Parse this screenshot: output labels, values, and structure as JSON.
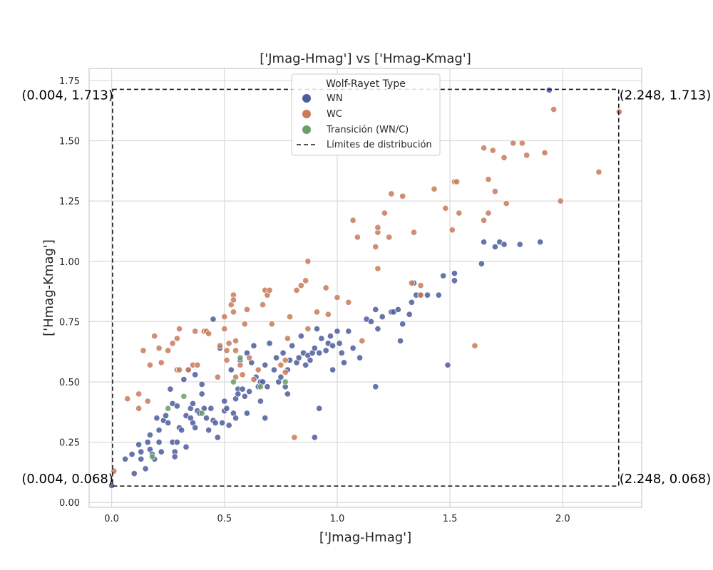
{
  "chart_data": {
    "type": "scatter",
    "title": "['Jmag-Hmag'] vs ['Hmag-Kmag']",
    "xlabel": "['Jmag-Hmag']",
    "ylabel": "['Hmag-Kmag']",
    "xlim": [
      -0.1,
      2.35
    ],
    "ylim": [
      -0.02,
      1.8
    ],
    "xticks": [
      0.0,
      0.5,
      1.0,
      1.5,
      2.0
    ],
    "xtick_labels": [
      "0.0",
      "0.5",
      "1.0",
      "1.5",
      "2.0"
    ],
    "yticks": [
      0.0,
      0.25,
      0.5,
      0.75,
      1.0,
      1.25,
      1.5,
      1.75
    ],
    "ytick_labels": [
      "0.00",
      "0.25",
      "0.50",
      "0.75",
      "1.00",
      "1.25",
      "1.50",
      "1.75"
    ],
    "grid": true,
    "legend": {
      "title": "Wolf-Rayet Type",
      "placement": "top-center",
      "entries": [
        "WN",
        "WC",
        "Transición (WN/C)",
        "Límites de distribución"
      ]
    },
    "bounds_box": {
      "x_min": 0.004,
      "x_max": 2.248,
      "y_min": 0.068,
      "y_max": 1.713,
      "labels": {
        "top_left": "(0.004, 1.713)",
        "top_right": "(2.248, 1.713)",
        "bottom_left": "(0.004, 0.068)",
        "bottom_right": "(2.248, 0.068)"
      }
    },
    "series": [
      {
        "name": "WN",
        "color": "#4c5c9e",
        "points": [
          [
            0.0,
            0.07
          ],
          [
            0.06,
            0.18
          ],
          [
            0.09,
            0.2
          ],
          [
            0.1,
            0.12
          ],
          [
            0.12,
            0.24
          ],
          [
            0.13,
            0.21
          ],
          [
            0.13,
            0.18
          ],
          [
            0.15,
            0.14
          ],
          [
            0.16,
            0.25
          ],
          [
            0.17,
            0.28
          ],
          [
            0.17,
            0.22
          ],
          [
            0.18,
            0.2
          ],
          [
            0.19,
            0.18
          ],
          [
            0.2,
            0.35
          ],
          [
            0.21,
            0.3
          ],
          [
            0.21,
            0.25
          ],
          [
            0.22,
            0.21
          ],
          [
            0.23,
            0.34
          ],
          [
            0.24,
            0.36
          ],
          [
            0.25,
            0.33
          ],
          [
            0.26,
            0.47
          ],
          [
            0.27,
            0.41
          ],
          [
            0.27,
            0.25
          ],
          [
            0.28,
            0.21
          ],
          [
            0.28,
            0.19
          ],
          [
            0.29,
            0.4
          ],
          [
            0.29,
            0.25
          ],
          [
            0.3,
            0.31
          ],
          [
            0.31,
            0.3
          ],
          [
            0.32,
            0.51
          ],
          [
            0.33,
            0.36
          ],
          [
            0.33,
            0.23
          ],
          [
            0.34,
            0.55
          ],
          [
            0.35,
            0.39
          ],
          [
            0.35,
            0.35
          ],
          [
            0.36,
            0.41
          ],
          [
            0.36,
            0.33
          ],
          [
            0.37,
            0.53
          ],
          [
            0.37,
            0.31
          ],
          [
            0.38,
            0.38
          ],
          [
            0.39,
            0.37
          ],
          [
            0.4,
            0.49
          ],
          [
            0.4,
            0.45
          ],
          [
            0.41,
            0.39
          ],
          [
            0.42,
            0.35
          ],
          [
            0.43,
            0.3
          ],
          [
            0.44,
            0.39
          ],
          [
            0.45,
            0.34
          ],
          [
            0.45,
            0.76
          ],
          [
            0.46,
            0.33
          ],
          [
            0.47,
            0.27
          ],
          [
            0.48,
            0.64
          ],
          [
            0.49,
            0.33
          ],
          [
            0.5,
            0.42
          ],
          [
            0.5,
            0.38
          ],
          [
            0.51,
            0.39
          ],
          [
            0.52,
            0.32
          ],
          [
            0.53,
            0.55
          ],
          [
            0.54,
            0.37
          ],
          [
            0.55,
            0.35
          ],
          [
            0.55,
            0.43
          ],
          [
            0.56,
            0.47
          ],
          [
            0.56,
            0.45
          ],
          [
            0.57,
            0.59
          ],
          [
            0.58,
            0.47
          ],
          [
            0.59,
            0.44
          ],
          [
            0.6,
            0.62
          ],
          [
            0.6,
            0.37
          ],
          [
            0.61,
            0.46
          ],
          [
            0.62,
            0.58
          ],
          [
            0.63,
            0.65
          ],
          [
            0.64,
            0.52
          ],
          [
            0.65,
            0.48
          ],
          [
            0.66,
            0.5
          ],
          [
            0.66,
            0.42
          ],
          [
            0.67,
            0.5
          ],
          [
            0.68,
            0.57
          ],
          [
            0.68,
            0.35
          ],
          [
            0.69,
            0.48
          ],
          [
            0.7,
            0.66
          ],
          [
            0.72,
            0.55
          ],
          [
            0.73,
            0.6
          ],
          [
            0.74,
            0.5
          ],
          [
            0.75,
            0.52
          ],
          [
            0.76,
            0.62
          ],
          [
            0.77,
            0.48
          ],
          [
            0.78,
            0.55
          ],
          [
            0.78,
            0.45
          ],
          [
            0.79,
            0.59
          ],
          [
            0.8,
            0.65
          ],
          [
            0.82,
            0.58
          ],
          [
            0.83,
            0.6
          ],
          [
            0.84,
            0.69
          ],
          [
            0.85,
            0.62
          ],
          [
            0.86,
            0.57
          ],
          [
            0.87,
            0.61
          ],
          [
            0.88,
            0.59
          ],
          [
            0.89,
            0.62
          ],
          [
            0.9,
            0.64
          ],
          [
            0.9,
            0.27
          ],
          [
            0.91,
            0.72
          ],
          [
            0.92,
            0.62
          ],
          [
            0.92,
            0.39
          ],
          [
            0.93,
            0.68
          ],
          [
            0.95,
            0.63
          ],
          [
            0.96,
            0.66
          ],
          [
            0.97,
            0.69
          ],
          [
            0.98,
            0.65
          ],
          [
            0.98,
            0.55
          ],
          [
            1.0,
            0.71
          ],
          [
            1.01,
            0.66
          ],
          [
            1.02,
            0.62
          ],
          [
            1.03,
            0.58
          ],
          [
            1.05,
            0.71
          ],
          [
            1.07,
            0.64
          ],
          [
            1.1,
            0.6
          ],
          [
            1.13,
            0.76
          ],
          [
            1.15,
            0.75
          ],
          [
            1.17,
            0.8
          ],
          [
            1.17,
            0.48
          ],
          [
            1.18,
            0.72
          ],
          [
            1.2,
            0.77
          ],
          [
            1.24,
            0.79
          ],
          [
            1.25,
            0.79
          ],
          [
            1.27,
            0.8
          ],
          [
            1.28,
            0.67
          ],
          [
            1.29,
            0.74
          ],
          [
            1.32,
            0.78
          ],
          [
            1.33,
            0.83
          ],
          [
            1.34,
            0.91
          ],
          [
            1.35,
            0.86
          ],
          [
            1.37,
            0.86
          ],
          [
            1.4,
            0.86
          ],
          [
            1.45,
            0.86
          ],
          [
            1.47,
            0.94
          ],
          [
            1.49,
            0.57
          ],
          [
            1.52,
            0.95
          ],
          [
            1.52,
            0.92
          ],
          [
            1.64,
            0.99
          ],
          [
            1.65,
            1.08
          ],
          [
            1.7,
            1.06
          ],
          [
            1.72,
            1.08
          ],
          [
            1.74,
            1.07
          ],
          [
            1.81,
            1.07
          ],
          [
            1.9,
            1.08
          ],
          [
            1.94,
            1.71
          ]
        ]
      },
      {
        "name": "WC",
        "color": "#c87a5a",
        "points": [
          [
            0.01,
            0.13
          ],
          [
            0.07,
            0.43
          ],
          [
            0.12,
            0.39
          ],
          [
            0.12,
            0.45
          ],
          [
            0.14,
            0.63
          ],
          [
            0.16,
            0.42
          ],
          [
            0.17,
            0.57
          ],
          [
            0.19,
            0.69
          ],
          [
            0.21,
            0.64
          ],
          [
            0.22,
            0.58
          ],
          [
            0.25,
            0.63
          ],
          [
            0.27,
            0.66
          ],
          [
            0.29,
            0.55
          ],
          [
            0.29,
            0.68
          ],
          [
            0.3,
            0.72
          ],
          [
            0.3,
            0.55
          ],
          [
            0.34,
            0.55
          ],
          [
            0.36,
            0.57
          ],
          [
            0.37,
            0.71
          ],
          [
            0.38,
            0.57
          ],
          [
            0.41,
            0.71
          ],
          [
            0.42,
            0.71
          ],
          [
            0.43,
            0.7
          ],
          [
            0.47,
            0.52
          ],
          [
            0.48,
            0.65
          ],
          [
            0.5,
            0.77
          ],
          [
            0.5,
            0.72
          ],
          [
            0.51,
            0.63
          ],
          [
            0.51,
            0.59
          ],
          [
            0.52,
            0.66
          ],
          [
            0.53,
            0.82
          ],
          [
            0.54,
            0.86
          ],
          [
            0.54,
            0.84
          ],
          [
            0.54,
            0.79
          ],
          [
            0.55,
            0.67
          ],
          [
            0.55,
            0.63
          ],
          [
            0.55,
            0.52
          ],
          [
            0.57,
            0.57
          ],
          [
            0.58,
            0.53
          ],
          [
            0.59,
            0.74
          ],
          [
            0.6,
            0.8
          ],
          [
            0.61,
            0.6
          ],
          [
            0.63,
            0.51
          ],
          [
            0.65,
            0.55
          ],
          [
            0.67,
            0.82
          ],
          [
            0.68,
            0.88
          ],
          [
            0.69,
            0.86
          ],
          [
            0.7,
            0.88
          ],
          [
            0.71,
            0.74
          ],
          [
            0.75,
            0.57
          ],
          [
            0.77,
            0.54
          ],
          [
            0.77,
            0.59
          ],
          [
            0.78,
            0.68
          ],
          [
            0.79,
            0.77
          ],
          [
            0.81,
            0.27
          ],
          [
            0.82,
            0.88
          ],
          [
            0.84,
            0.9
          ],
          [
            0.86,
            0.92
          ],
          [
            0.87,
            0.72
          ],
          [
            0.87,
            1.0
          ],
          [
            0.91,
            0.79
          ],
          [
            0.95,
            0.89
          ],
          [
            0.96,
            0.78
          ],
          [
            1.0,
            0.85
          ],
          [
            1.05,
            0.83
          ],
          [
            1.07,
            1.17
          ],
          [
            1.09,
            1.1
          ],
          [
            1.11,
            0.67
          ],
          [
            1.17,
            1.06
          ],
          [
            1.18,
            1.12
          ],
          [
            1.18,
            1.14
          ],
          [
            1.18,
            0.97
          ],
          [
            1.21,
            1.2
          ],
          [
            1.23,
            1.1
          ],
          [
            1.24,
            1.28
          ],
          [
            1.29,
            1.27
          ],
          [
            1.33,
            0.91
          ],
          [
            1.34,
            1.12
          ],
          [
            1.37,
            0.9
          ],
          [
            1.37,
            0.86
          ],
          [
            1.43,
            1.3
          ],
          [
            1.48,
            1.22
          ],
          [
            1.51,
            1.13
          ],
          [
            1.52,
            1.33
          ],
          [
            1.53,
            1.33
          ],
          [
            1.54,
            1.2
          ],
          [
            1.61,
            0.65
          ],
          [
            1.65,
            1.47
          ],
          [
            1.65,
            1.17
          ],
          [
            1.67,
            1.34
          ],
          [
            1.67,
            1.2
          ],
          [
            1.69,
            1.46
          ],
          [
            1.7,
            1.29
          ],
          [
            1.74,
            1.43
          ],
          [
            1.75,
            1.24
          ],
          [
            1.78,
            1.49
          ],
          [
            1.82,
            1.49
          ],
          [
            1.84,
            1.44
          ],
          [
            1.92,
            1.45
          ],
          [
            1.96,
            1.63
          ],
          [
            1.99,
            1.25
          ],
          [
            2.16,
            1.37
          ],
          [
            2.25,
            1.62
          ]
        ]
      },
      {
        "name": "Transición (WN/C)",
        "color": "#6a9f6a",
        "points": [
          [
            0.18,
            0.19
          ],
          [
            0.25,
            0.39
          ],
          [
            0.32,
            0.44
          ],
          [
            0.4,
            0.37
          ],
          [
            0.54,
            0.5
          ],
          [
            0.57,
            0.6
          ],
          [
            0.66,
            0.48
          ],
          [
            0.77,
            0.5
          ]
        ]
      }
    ]
  }
}
